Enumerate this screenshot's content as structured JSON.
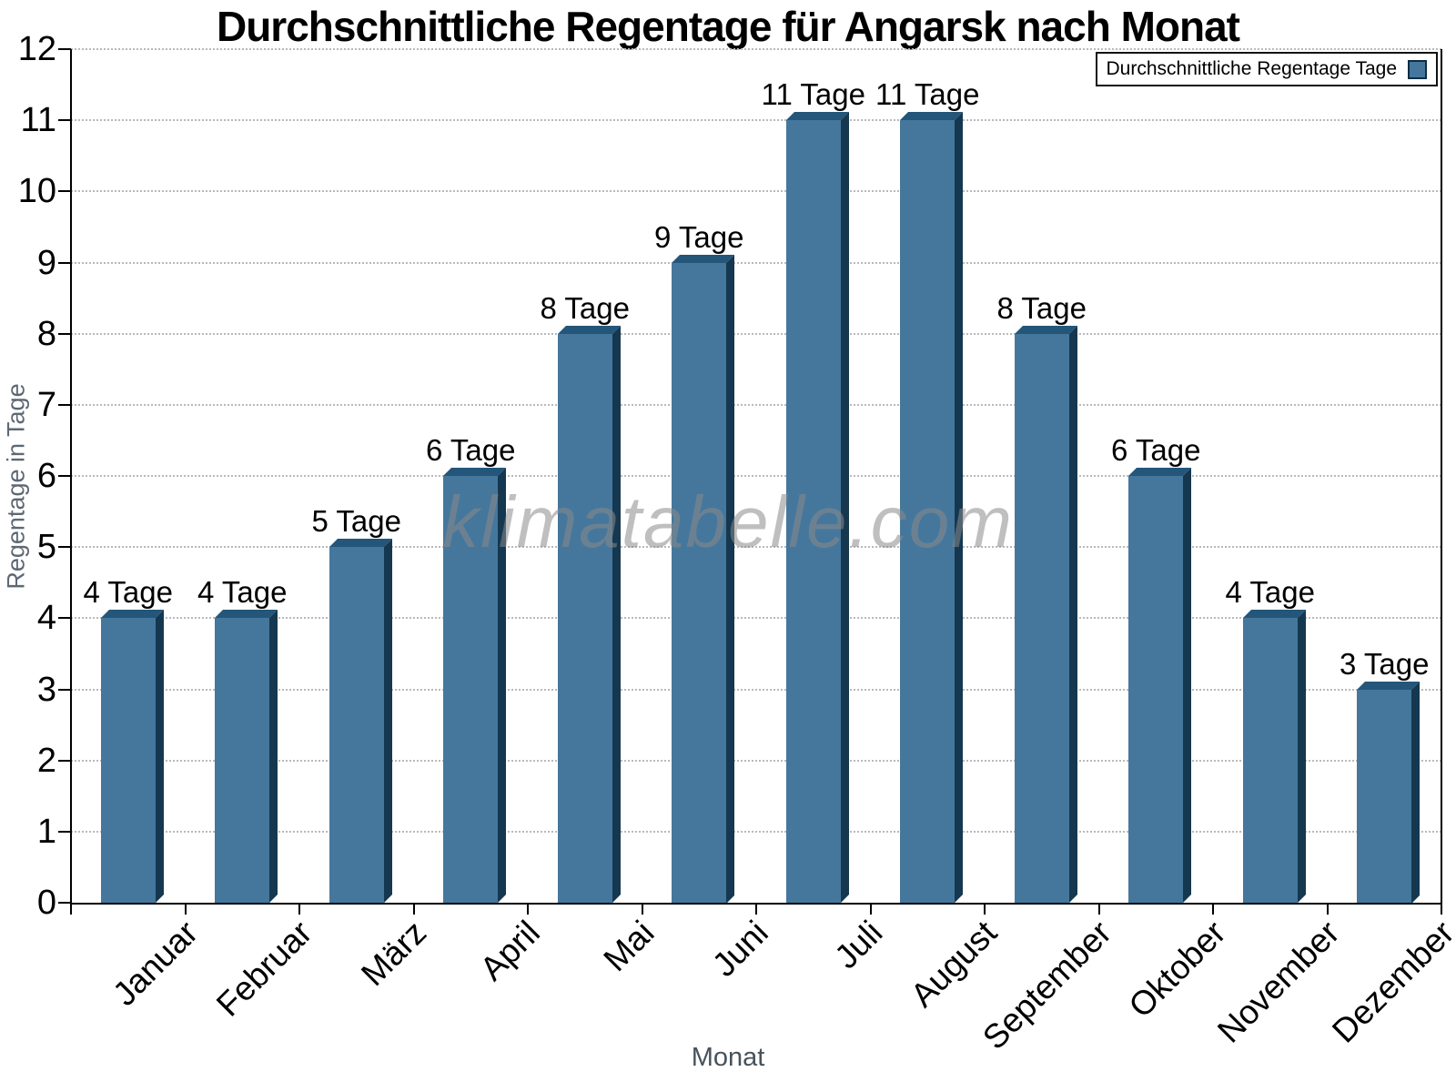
{
  "title": "Durchschnittliche Regentage für Angarsk nach Monat",
  "legend": {
    "label": "Durchschnittliche Regentage Tage",
    "position": "top-right"
  },
  "watermark": "klimatabelle.com",
  "chart_data": {
    "type": "bar",
    "title": "Durchschnittliche Regentage für Angarsk nach Monat",
    "categories": [
      "Januar",
      "Februar",
      "März",
      "April",
      "Mai",
      "Juni",
      "Juli",
      "August",
      "September",
      "Oktober",
      "November",
      "Dezember"
    ],
    "values": [
      4,
      4,
      5,
      6,
      8,
      9,
      11,
      11,
      8,
      6,
      4,
      3
    ],
    "value_label_suffix": " Tage",
    "xlabel": "Monat",
    "ylabel": "Regentage in Tage",
    "ylim": [
      0,
      12
    ],
    "ytick_step": 1,
    "grid": "horizontal-dotted",
    "legend_entries": [
      "Durchschnittliche Regentage Tage"
    ],
    "legend_position": "top-right",
    "colors": {
      "bar_face": "#45779c",
      "bar_top": "#24567a",
      "bar_side": "#153850",
      "swatch_border": "#0f2d40",
      "axis": "#000000",
      "grid": "#b9b9b9",
      "axis_title": "#5d6873",
      "watermark": "#8a8a8a"
    }
  }
}
